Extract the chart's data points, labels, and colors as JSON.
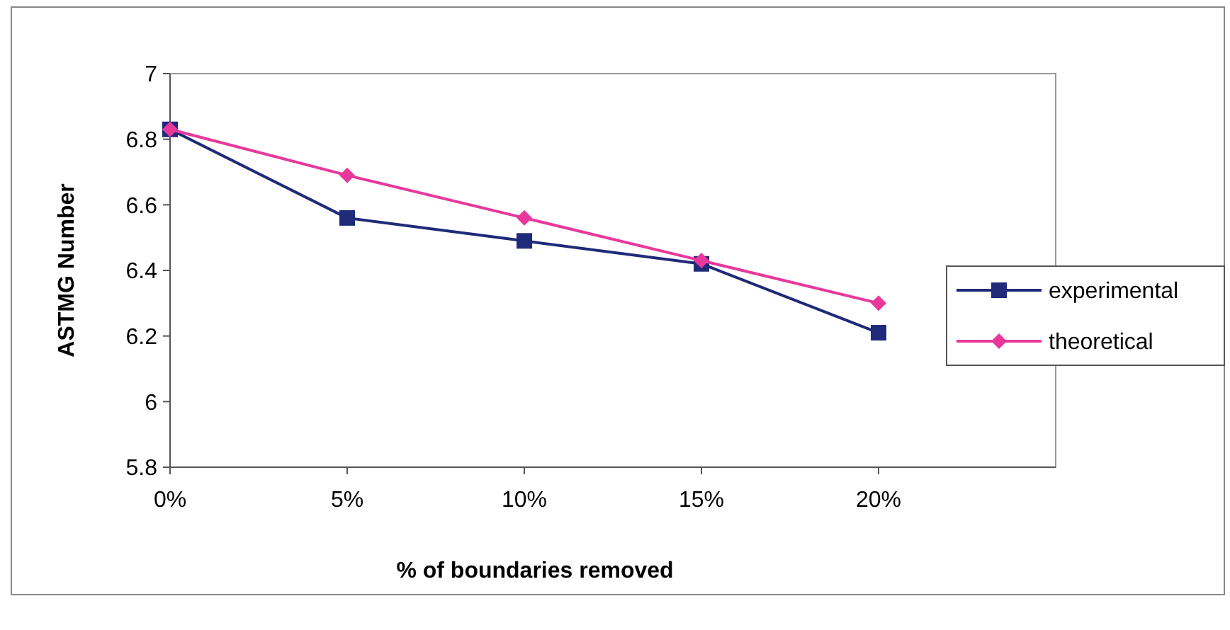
{
  "chart_data": {
    "type": "line",
    "xlabel": "% of boundaries removed",
    "ylabel": "ASTMG Number",
    "categories": [
      "0%",
      "5%",
      "10%",
      "15%",
      "20%"
    ],
    "series": [
      {
        "name": "experimental",
        "color": "#1f2a78",
        "marker": "square",
        "values": [
          6.83,
          6.56,
          6.49,
          6.42,
          6.21
        ]
      },
      {
        "name": "theoretical",
        "color": "#e8389c",
        "marker": "diamond",
        "values": [
          6.83,
          6.69,
          6.56,
          6.43,
          6.3
        ]
      }
    ],
    "ylim": [
      5.8,
      7
    ],
    "yticks": [
      {
        "value": 5.8,
        "label": "5.8"
      },
      {
        "value": 6,
        "label": "6"
      },
      {
        "value": 6.2,
        "label": "6.2"
      },
      {
        "value": 6.4,
        "label": "6.4"
      },
      {
        "value": 6.6,
        "label": "6.6"
      },
      {
        "value": 6.8,
        "label": "6.8"
      },
      {
        "value": 7,
        "label": "7"
      }
    ],
    "legend": "right",
    "grid": false
  }
}
